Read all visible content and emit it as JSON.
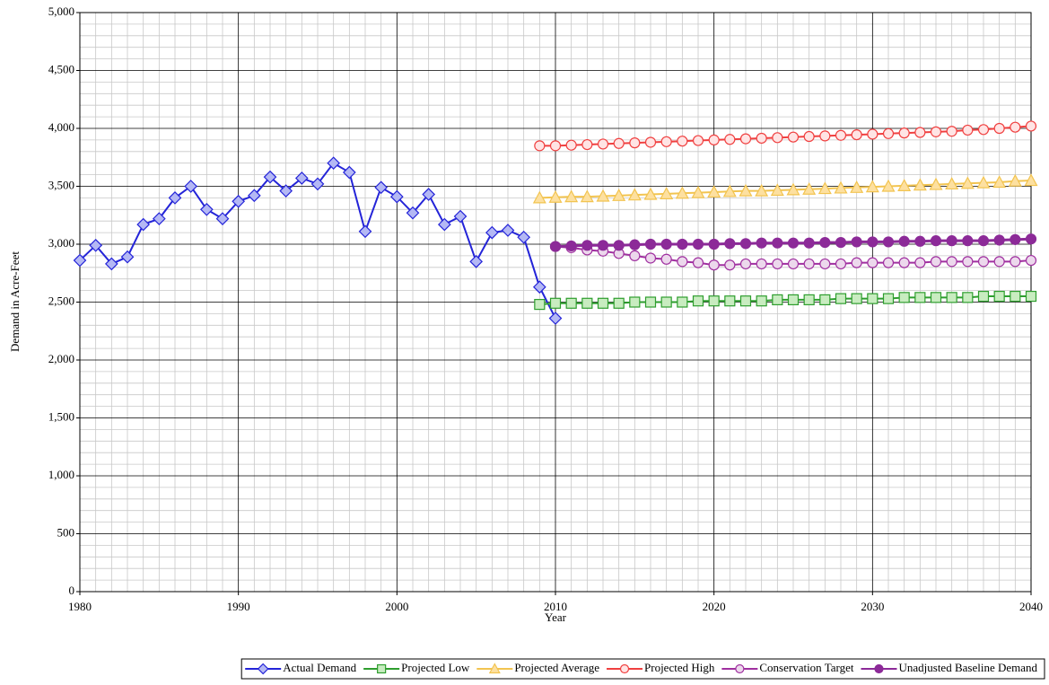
{
  "chart_data": {
    "type": "line",
    "x_label": "Year",
    "y_label": "Demand in Acre-Feet",
    "x": [
      1980,
      1981,
      1982,
      1983,
      1984,
      1985,
      1986,
      1987,
      1988,
      1989,
      1990,
      1991,
      1992,
      1993,
      1994,
      1995,
      1996,
      1997,
      1998,
      1999,
      2000,
      2001,
      2002,
      2003,
      2004,
      2005,
      2006,
      2007,
      2008,
      2009,
      2010,
      2011,
      2012,
      2013,
      2014,
      2015,
      2016,
      2017,
      2018,
      2019,
      2020,
      2021,
      2022,
      2023,
      2024,
      2025,
      2026,
      2027,
      2028,
      2029,
      2030,
      2031,
      2032,
      2033,
      2034,
      2035,
      2036,
      2037,
      2038,
      2039,
      2040
    ],
    "xlim": [
      1980,
      2040
    ],
    "xticks": [
      1980,
      1990,
      2000,
      2010,
      2020,
      2030,
      2040
    ],
    "ylim": [
      0,
      5000
    ],
    "yticks": [
      0,
      500,
      {
        "value": 1000,
        "label": "1,000"
      },
      {
        "value": 1500,
        "label": "1,500"
      },
      {
        "value": 2000,
        "label": "2,000"
      },
      {
        "value": 2500,
        "label": "2,500"
      },
      {
        "value": 3000,
        "label": "3,000"
      },
      {
        "value": 3500,
        "label": "3,500"
      },
      {
        "value": 4000,
        "label": "4,000"
      },
      {
        "value": 4500,
        "label": "4,500"
      },
      {
        "value": 5000,
        "label": "5,000"
      }
    ],
    "grid": true,
    "minor_grid": true,
    "legend_position": "bottom",
    "series": [
      {
        "name": "Actual Demand",
        "color": "#2424d8",
        "marker": "diamond",
        "marker_fill": "#b4b8f4",
        "values": [
          2860,
          2990,
          2830,
          2890,
          3170,
          3220,
          3400,
          3500,
          3300,
          3220,
          3370,
          3420,
          3580,
          3460,
          3570,
          3520,
          3700,
          3620,
          3110,
          3490,
          3410,
          3270,
          3430,
          3170,
          3240,
          2850,
          3100,
          3120,
          3060,
          2630,
          2360,
          null,
          null,
          null,
          null,
          null,
          null,
          null,
          null,
          null,
          null,
          null,
          null,
          null,
          null,
          null,
          null,
          null,
          null,
          null,
          null,
          null,
          null,
          null,
          null,
          null,
          null,
          null,
          null,
          null,
          null
        ]
      },
      {
        "name": "Projected Low",
        "color": "#2e9e2e",
        "marker": "square",
        "marker_fill": "#c8ecc0",
        "values": [
          null,
          null,
          null,
          null,
          null,
          null,
          null,
          null,
          null,
          null,
          null,
          null,
          null,
          null,
          null,
          null,
          null,
          null,
          null,
          null,
          null,
          null,
          null,
          null,
          null,
          null,
          null,
          null,
          null,
          2480,
          2490,
          2490,
          2490,
          2490,
          2490,
          2500,
          2500,
          2500,
          2500,
          2510,
          2510,
          2510,
          2510,
          2510,
          2520,
          2520,
          2520,
          2520,
          2530,
          2530,
          2530,
          2530,
          2540,
          2540,
          2540,
          2540,
          2540,
          2550,
          2550,
          2550,
          2550
        ]
      },
      {
        "name": "Projected Average",
        "color": "#f2c450",
        "marker": "triangle",
        "marker_fill": "#fde0a0",
        "values": [
          null,
          null,
          null,
          null,
          null,
          null,
          null,
          null,
          null,
          null,
          null,
          null,
          null,
          null,
          null,
          null,
          null,
          null,
          null,
          null,
          null,
          null,
          null,
          null,
          null,
          null,
          null,
          null,
          null,
          3400,
          3405,
          3410,
          3410,
          3415,
          3420,
          3425,
          3430,
          3435,
          3440,
          3445,
          3450,
          3455,
          3460,
          3460,
          3465,
          3470,
          3475,
          3480,
          3485,
          3490,
          3495,
          3500,
          3505,
          3510,
          3515,
          3520,
          3525,
          3530,
          3535,
          3545,
          3550
        ]
      },
      {
        "name": "Projected High",
        "color": "#f04040",
        "marker": "circle",
        "marker_fill": "#ffe4e4",
        "values": [
          null,
          null,
          null,
          null,
          null,
          null,
          null,
          null,
          null,
          null,
          null,
          null,
          null,
          null,
          null,
          null,
          null,
          null,
          null,
          null,
          null,
          null,
          null,
          null,
          null,
          null,
          null,
          null,
          null,
          3850,
          3850,
          3855,
          3860,
          3865,
          3870,
          3875,
          3880,
          3885,
          3890,
          3895,
          3900,
          3905,
          3910,
          3915,
          3920,
          3925,
          3930,
          3935,
          3940,
          3945,
          3950,
          3955,
          3960,
          3965,
          3970,
          3975,
          3985,
          3990,
          4000,
          4010,
          4020
        ]
      },
      {
        "name": "Conservation Target",
        "color": "#a030a0",
        "marker": "circle",
        "marker_fill": "#ecd8ec",
        "values": [
          null,
          null,
          null,
          null,
          null,
          null,
          null,
          null,
          null,
          null,
          null,
          null,
          null,
          null,
          null,
          null,
          null,
          null,
          null,
          null,
          null,
          null,
          null,
          null,
          null,
          null,
          null,
          null,
          null,
          null,
          2980,
          2970,
          2950,
          2940,
          2920,
          2900,
          2880,
          2870,
          2850,
          2840,
          2820,
          2820,
          2830,
          2830,
          2830,
          2830,
          2830,
          2830,
          2830,
          2840,
          2840,
          2840,
          2840,
          2840,
          2850,
          2850,
          2850,
          2850,
          2850,
          2850,
          2860
        ]
      },
      {
        "name": "Unadjusted Baseline Demand",
        "color": "#8c2a98",
        "marker": "circle",
        "marker_fill": "#8c2a98",
        "values": [
          null,
          null,
          null,
          null,
          null,
          null,
          null,
          null,
          null,
          null,
          null,
          null,
          null,
          null,
          null,
          null,
          null,
          null,
          null,
          null,
          null,
          null,
          null,
          null,
          null,
          null,
          null,
          null,
          null,
          null,
          2980,
          2985,
          2990,
          2990,
          2990,
          2995,
          3000,
          3000,
          3000,
          3000,
          3000,
          3005,
          3005,
          3010,
          3010,
          3010,
          3010,
          3015,
          3015,
          3020,
          3020,
          3020,
          3025,
          3025,
          3030,
          3030,
          3030,
          3030,
          3035,
          3040,
          3045
        ]
      }
    ]
  }
}
